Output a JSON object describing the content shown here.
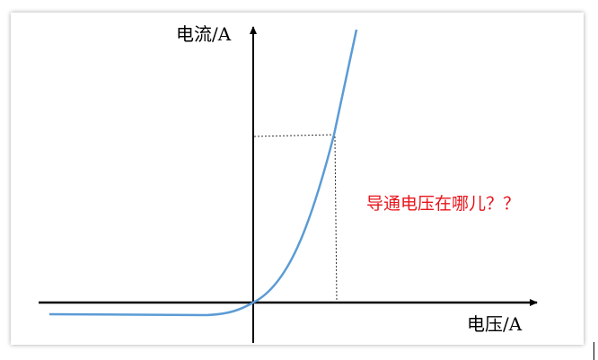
{
  "diagram": {
    "y_axis_label": "电流/A",
    "x_axis_label": "电压/A",
    "annotation": "导通电压在哪儿？？",
    "colors": {
      "curve": "#5b9bd5",
      "axes": "#000000",
      "annotation": "#e8141b",
      "guide_lines": "#333333"
    }
  }
}
